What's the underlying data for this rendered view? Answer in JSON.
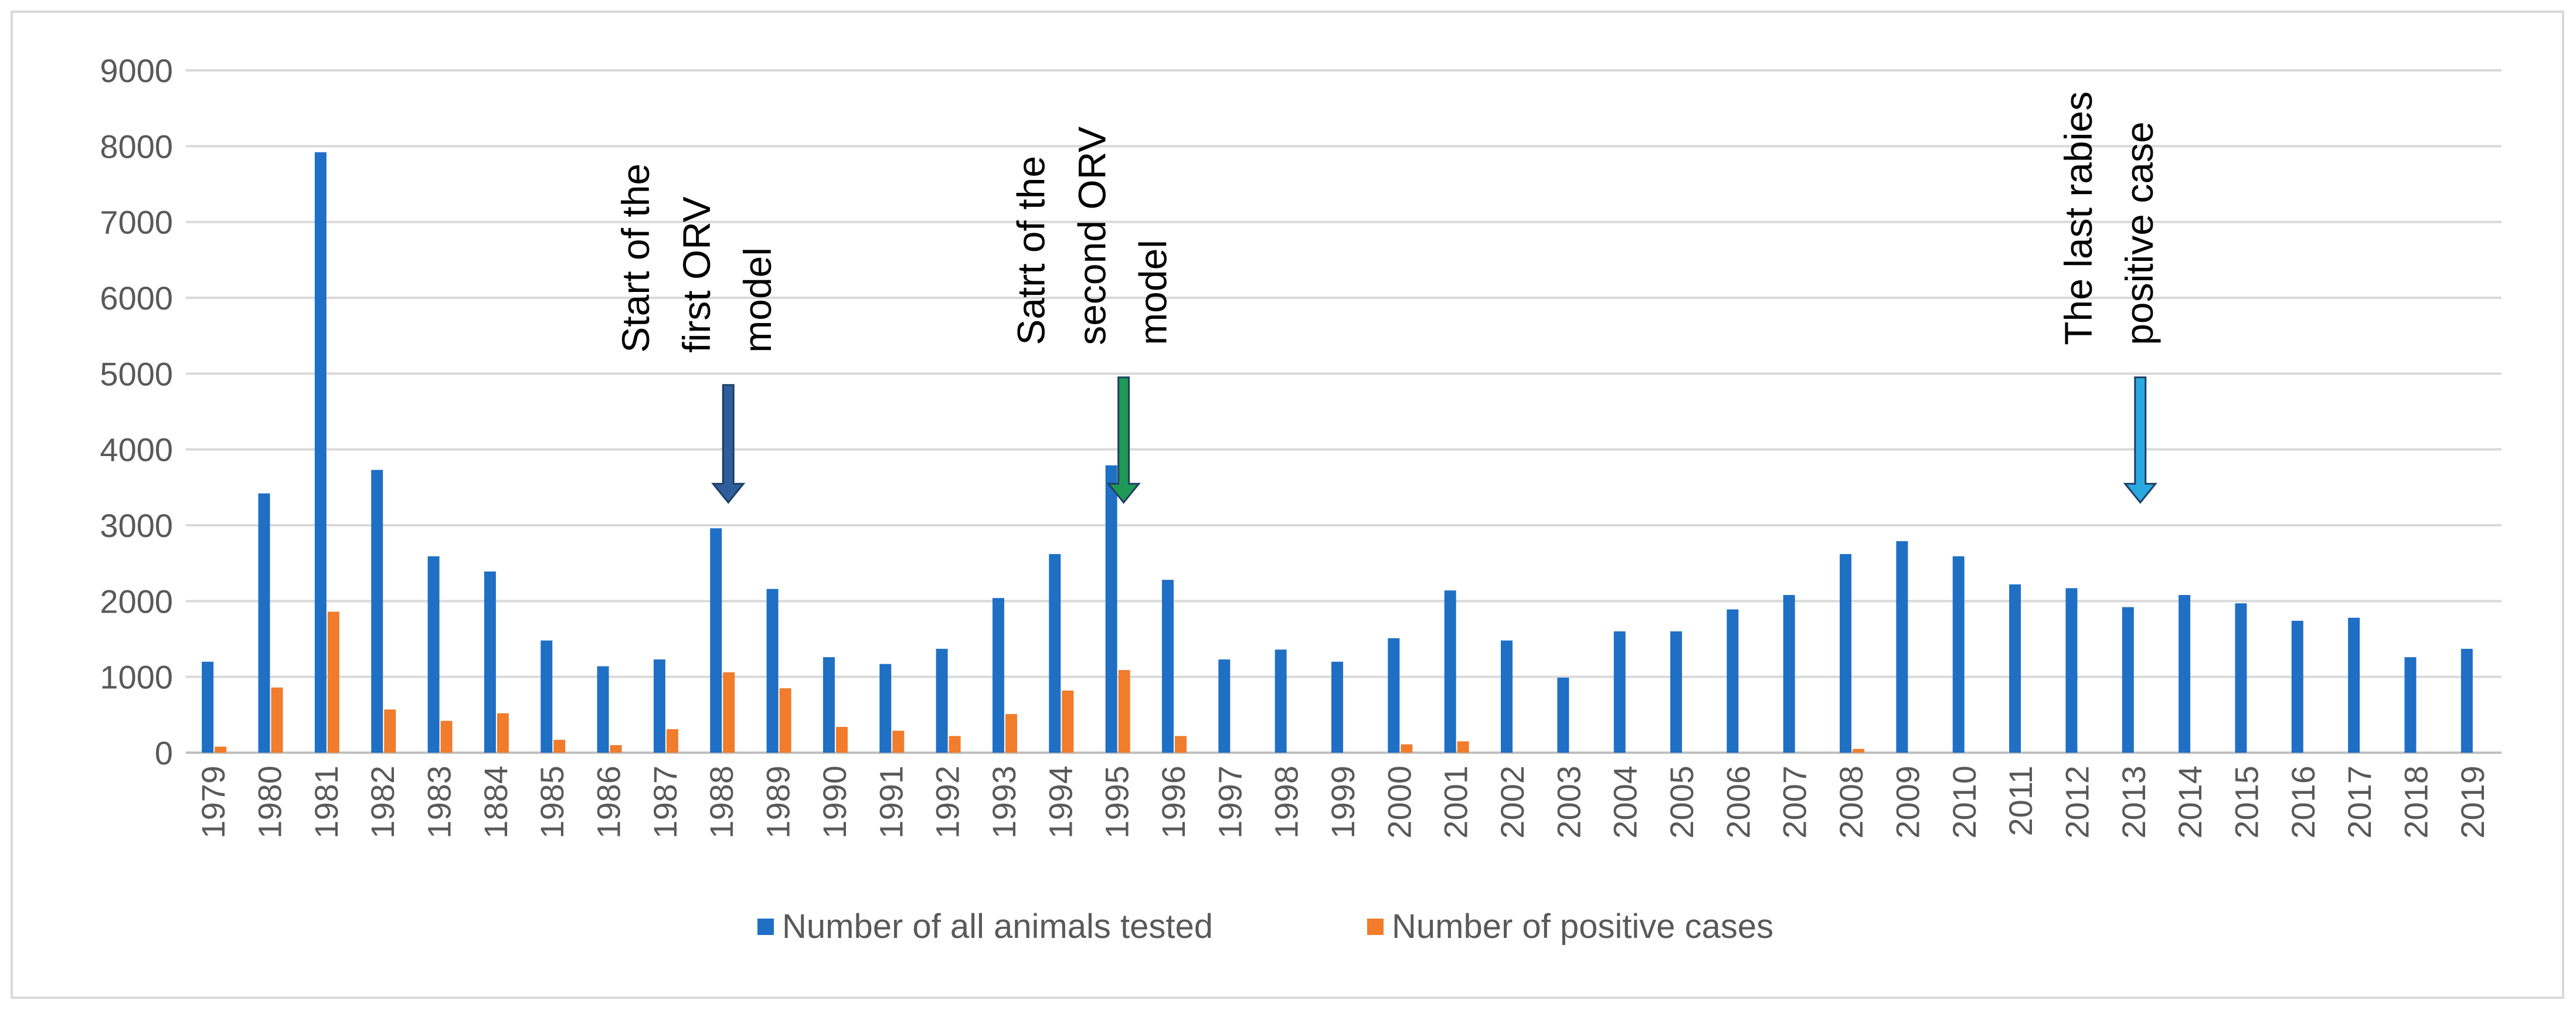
{
  "chart_data": {
    "type": "bar",
    "title": "",
    "xlabel": "",
    "ylabel": "",
    "ylim": [
      0,
      9000
    ],
    "yticks": [
      0,
      1000,
      2000,
      3000,
      4000,
      5000,
      6000,
      7000,
      8000,
      9000
    ],
    "grid": "horizontal",
    "legend_position": "bottom",
    "categories": [
      "1979",
      "1980",
      "1981",
      "1982",
      "1983",
      "1884",
      "1985",
      "1986",
      "1987",
      "1988",
      "1989",
      "1990",
      "1991",
      "1992",
      "1993",
      "1994",
      "1995",
      "1996",
      "1997",
      "1998",
      "1999",
      "2000",
      "2001",
      "2002",
      "2003",
      "2004",
      "2005",
      "2006",
      "2007",
      "2008",
      "2009",
      "2010",
      "2011",
      "2012",
      "2013",
      "2014",
      "2015",
      "2016",
      "2017",
      "2018",
      "2019"
    ],
    "series": [
      {
        "name": "Number of all animals tested",
        "color": "#1f6fc5",
        "values": [
          1200,
          3420,
          7920,
          3730,
          2590,
          2390,
          1480,
          1140,
          1230,
          2960,
          2160,
          1260,
          1170,
          1370,
          2040,
          2620,
          3790,
          2280,
          1230,
          1360,
          1200,
          1510,
          2140,
          1480,
          990,
          1600,
          1600,
          1890,
          2080,
          2620,
          2790,
          2590,
          2220,
          2170,
          1920,
          2080,
          1970,
          1740,
          1780,
          1260,
          1370
        ]
      },
      {
        "name": "Number of positive cases",
        "color": "#f07c2c",
        "values": [
          80,
          860,
          1860,
          570,
          420,
          520,
          170,
          100,
          310,
          1060,
          850,
          340,
          290,
          220,
          510,
          820,
          1090,
          220,
          0,
          0,
          0,
          110,
          150,
          0,
          0,
          0,
          0,
          0,
          0,
          50,
          0,
          0,
          0,
          0,
          0,
          0,
          0,
          0,
          0,
          0,
          0
        ]
      }
    ],
    "annotations": [
      {
        "lines": [
          "Start of the",
          "first ORV",
          "model"
        ],
        "category": "1988",
        "arrow_color": "#2e5f9c",
        "arrow_from": 4850,
        "arrow_to": 3300
      },
      {
        "lines": [
          "Satrt of the",
          "second ORV",
          "model"
        ],
        "category": "1995",
        "arrow_color": "#1e9a55",
        "arrow_from": 4950,
        "arrow_to": 3300
      },
      {
        "lines": [
          "The last rabies",
          "positive case"
        ],
        "category": "2013",
        "arrow_color": "#2aa8e0",
        "arrow_from": 4950,
        "arrow_to": 3300
      }
    ]
  }
}
